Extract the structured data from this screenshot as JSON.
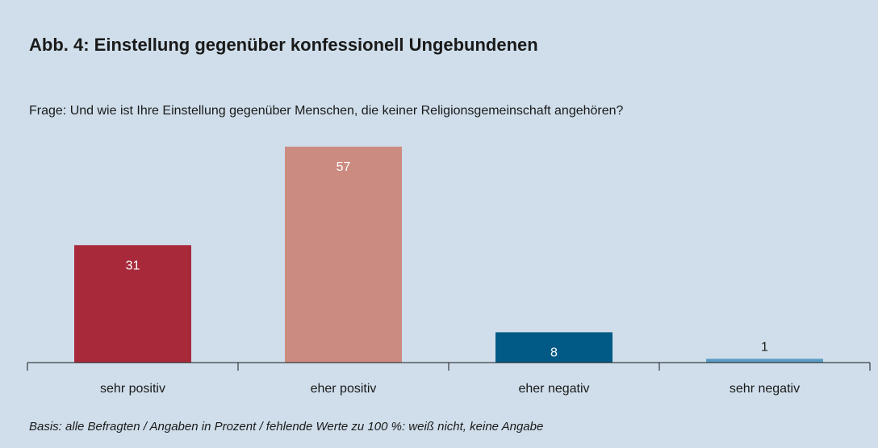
{
  "chart_data": {
    "type": "bar",
    "title": "Abb. 4: Einstellung gegenüber konfessionell Ungebundenen",
    "subtitle": "Frage: Und wie ist Ihre Einstellung gegenüber Menschen, die keiner Religionsgemeinschaft angehören?",
    "categories": [
      "sehr positiv",
      "eher positiv",
      "eher negativ",
      "sehr negativ"
    ],
    "values": [
      31,
      57,
      8,
      1
    ],
    "colors": [
      "#a82a3a",
      "#cc8b80",
      "#005a85",
      "#5b9cc6"
    ],
    "footnote": "Basis: alle Befragten / Angaben in Prozent / fehlende Werte zu 100 %: weiß nicht, keine Angabe"
  }
}
